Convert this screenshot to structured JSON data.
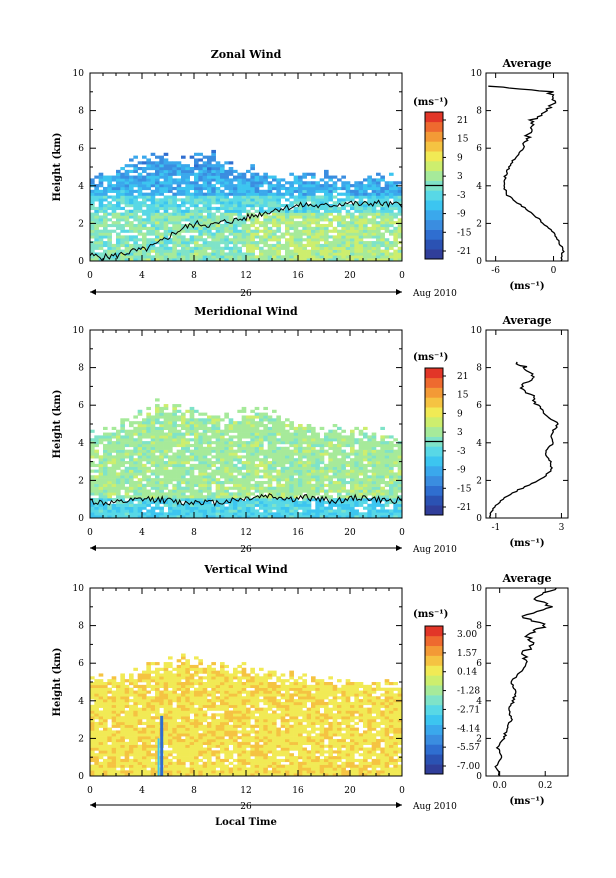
{
  "chart_data": [
    {
      "type": "heatmap",
      "title": "Zonal Wind",
      "xlabel": "",
      "ylabel": "Height (km)",
      "xticks": [
        "0",
        "4",
        "8",
        "12",
        "16",
        "20",
        "0"
      ],
      "yticks": [
        "0",
        "2",
        "4",
        "6",
        "8",
        "10"
      ],
      "ylim": [
        0,
        10
      ],
      "xlim_hours": [
        0,
        24
      ],
      "date_label": "26",
      "month_label": "Aug 2010",
      "colorbar": {
        "unit": "(ms⁻¹)",
        "ticks": [
          "21",
          "15",
          "9",
          "3",
          "-3",
          "-9",
          "-15",
          "-21"
        ],
        "range": [
          -24,
          24
        ],
        "zero_line": true
      },
      "echo_top_km": [
        4.2,
        4.4,
        4.6,
        5.0,
        5.4,
        5.6,
        5.4,
        5.3,
        5.6,
        5.5,
        5.3,
        5.0,
        4.8,
        4.6,
        4.5,
        4.4,
        4.6,
        4.5,
        4.4,
        4.3,
        4.3,
        4.4,
        4.3,
        4.2
      ],
      "zero_contour_km": [
        0.3,
        0.2,
        0.3,
        0.5,
        0.6,
        0.9,
        1.4,
        1.8,
        2.0,
        1.9,
        2.1,
        2.2,
        2.4,
        2.6,
        2.8,
        2.9,
        3.0,
        2.9,
        3.0,
        3.1,
        3.0,
        3.1,
        3.0,
        3.0
      ],
      "profile_title": "Average",
      "profile_xlabel": "(ms⁻¹)",
      "profile_xticks": [
        "-6",
        "0"
      ],
      "profile_xlim": [
        -7,
        1.5
      ],
      "profile_yticks": [
        "0",
        "2",
        "4",
        "6",
        "8",
        "10"
      ],
      "profile_height_km": [
        0.0,
        0.5,
        1.0,
        1.5,
        2.0,
        2.5,
        3.0,
        3.5,
        4.0,
        4.5,
        5.0,
        5.5,
        6.0,
        6.5,
        7.0,
        7.5,
        8.0,
        8.5,
        9.0,
        9.3
      ],
      "profile_value": [
        0.8,
        1.0,
        0.6,
        0.0,
        -1.0,
        -2.2,
        -3.5,
        -4.8,
        -5.2,
        -5.0,
        -4.6,
        -4.0,
        -3.0,
        -2.7,
        -2.5,
        -2.2,
        -0.5,
        0.0,
        -0.3,
        -6.5
      ]
    },
    {
      "type": "heatmap",
      "title": "Meridional Wind",
      "xlabel": "",
      "ylabel": "Height (km)",
      "xticks": [
        "0",
        "4",
        "8",
        "12",
        "16",
        "20",
        "0"
      ],
      "yticks": [
        "0",
        "2",
        "4",
        "6",
        "8",
        "10"
      ],
      "ylim": [
        0,
        10
      ],
      "xlim_hours": [
        0,
        24
      ],
      "date_label": "26",
      "month_label": "Aug 2010",
      "colorbar": {
        "unit": "(ms⁻¹)",
        "ticks": [
          "21",
          "15",
          "9",
          "3",
          "-3",
          "-9",
          "-15",
          "-21"
        ],
        "range": [
          -24,
          24
        ],
        "zero_line": true
      },
      "echo_top_km": [
        4.4,
        4.6,
        4.8,
        5.2,
        5.6,
        6.0,
        5.9,
        5.6,
        5.5,
        5.4,
        5.3,
        5.4,
        5.6,
        5.8,
        5.5,
        5.0,
        4.9,
        4.8,
        4.7,
        4.6,
        4.5,
        4.5,
        4.4,
        4.3
      ],
      "zero_contour_km": [
        0.9,
        0.8,
        0.8,
        0.9,
        1.0,
        1.0,
        0.9,
        0.8,
        0.9,
        0.8,
        0.9,
        1.0,
        1.1,
        1.2,
        1.1,
        1.0,
        1.1,
        1.0,
        0.9,
        1.0,
        1.1,
        1.0,
        0.9,
        1.0
      ],
      "profile_title": "Average",
      "profile_xlabel": "(ms⁻¹)",
      "profile_xticks": [
        "-1",
        "3"
      ],
      "profile_xlim": [
        -1.6,
        3.4
      ],
      "profile_yticks": [
        "0",
        "2",
        "4",
        "6",
        "8",
        "10"
      ],
      "profile_height_km": [
        0.0,
        0.5,
        1.0,
        1.5,
        2.0,
        2.5,
        3.0,
        3.5,
        4.0,
        4.5,
        5.0,
        5.5,
        6.0,
        6.5,
        7.0,
        7.5,
        8.0,
        8.3
      ],
      "profile_value": [
        -1.4,
        -1.2,
        -0.6,
        0.4,
        1.6,
        2.4,
        2.3,
        2.0,
        2.5,
        2.4,
        2.8,
        2.0,
        1.6,
        1.2,
        0.6,
        1.4,
        0.8,
        0.2
      ]
    },
    {
      "type": "heatmap",
      "title": "Vertical Wind",
      "xlabel": "Local Time",
      "ylabel": "Height (km)",
      "xticks": [
        "0",
        "4",
        "8",
        "12",
        "16",
        "20",
        "0"
      ],
      "yticks": [
        "0",
        "2",
        "4",
        "6",
        "8",
        "10"
      ],
      "ylim": [
        0,
        10
      ],
      "xlim_hours": [
        0,
        24
      ],
      "date_label": "26",
      "month_label": "Aug 2010",
      "colorbar": {
        "unit": "(ms⁻¹)",
        "ticks": [
          "3.00",
          "1.57",
          "0.14",
          "-1.28",
          "-2.71",
          "-4.14",
          "-5.57",
          "-7.00"
        ],
        "range": [
          -8.0,
          4.0
        ],
        "zero_line": false
      },
      "echo_top_km": [
        5.0,
        5.1,
        5.2,
        5.4,
        5.6,
        5.8,
        6.0,
        6.1,
        6.0,
        5.9,
        5.8,
        5.7,
        5.6,
        5.5,
        5.4,
        5.3,
        5.2,
        5.1,
        5.0,
        5.0,
        4.9,
        4.8,
        4.8,
        4.7
      ],
      "profile_title": "Average",
      "profile_xlabel": "(ms⁻¹)",
      "profile_xticks": [
        "0.0",
        "0.2"
      ],
      "profile_xlim": [
        -0.06,
        0.3
      ],
      "profile_yticks": [
        "0",
        "2",
        "4",
        "6",
        "8",
        "10"
      ],
      "profile_height_km": [
        0.0,
        0.5,
        1.0,
        1.5,
        2.0,
        2.5,
        3.0,
        3.5,
        4.0,
        4.5,
        5.0,
        5.5,
        6.0,
        6.5,
        7.0,
        7.5,
        8.0,
        8.5,
        9.0,
        9.5,
        10.0
      ],
      "profile_value": [
        0.0,
        -0.02,
        0.01,
        -0.01,
        0.02,
        0.03,
        0.05,
        0.04,
        0.06,
        0.07,
        0.05,
        0.09,
        0.12,
        0.1,
        0.15,
        0.12,
        0.2,
        0.1,
        0.22,
        0.15,
        0.25
      ]
    }
  ]
}
